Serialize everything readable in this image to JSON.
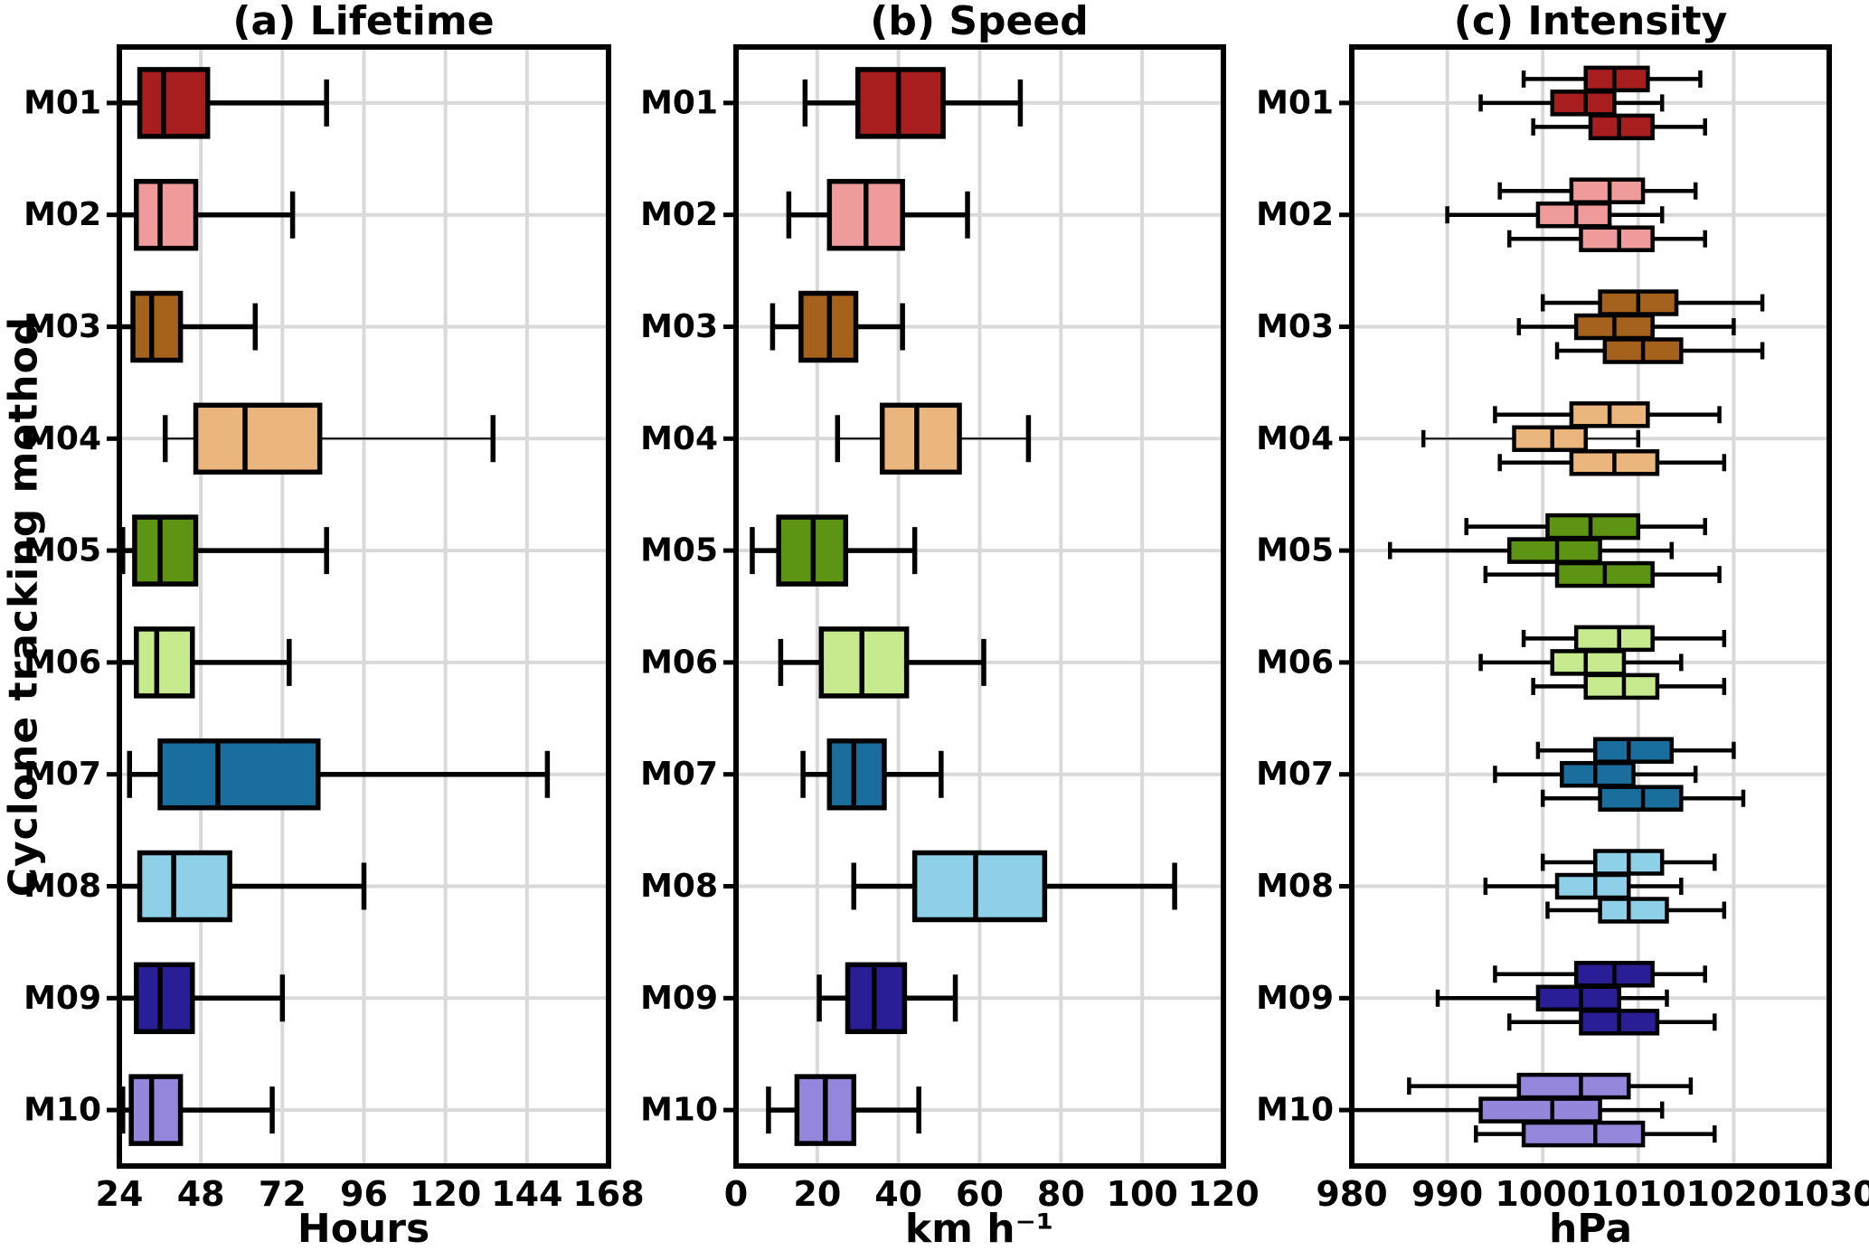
{
  "figure": {
    "y_axis_label": "Cyclone tracking method"
  },
  "methods": [
    {
      "id": "M01",
      "color": "#A81D1D"
    },
    {
      "id": "M02",
      "color": "#EF9B9B"
    },
    {
      "id": "M03",
      "color": "#A4621D"
    },
    {
      "id": "M04",
      "color": "#EBB57E"
    },
    {
      "id": "M05",
      "color": "#5E9414"
    },
    {
      "id": "M06",
      "color": "#C8EA8E"
    },
    {
      "id": "M07",
      "color": "#1A6E9E"
    },
    {
      "id": "M08",
      "color": "#8DD0E8"
    },
    {
      "id": "M09",
      "color": "#2A1E96"
    },
    {
      "id": "M10",
      "color": "#9486DB"
    }
  ],
  "stats_format": [
    "whisker_low",
    "q1",
    "median",
    "q3",
    "whisker_high"
  ],
  "style": {
    "grid_color": "#d9d9d9",
    "line_color": "#000000",
    "background": "#ffffff"
  },
  "chart_data": [
    {
      "type": "box",
      "title": "(a) Lifetime",
      "xlabel": "Hours",
      "xlim": [
        24,
        168
      ],
      "xticks": [
        24,
        48,
        72,
        96,
        120,
        144,
        168
      ],
      "grid": true,
      "orientation": "horizontal",
      "series": [
        {
          "method": "M01",
          "boxes": [
            {
              "position": "single",
              "thin_whisker": false,
              "stats": [
                24,
                30,
                37,
                50,
                85
              ]
            }
          ]
        },
        {
          "method": "M02",
          "boxes": [
            {
              "position": "single",
              "thin_whisker": false,
              "stats": [
                24,
                29,
                36,
                46.5,
                75
              ]
            }
          ]
        },
        {
          "method": "M03",
          "boxes": [
            {
              "position": "single",
              "thin_whisker": false,
              "stats": [
                24,
                28,
                33.5,
                42,
                64
              ]
            }
          ]
        },
        {
          "method": "M04",
          "boxes": [
            {
              "position": "single",
              "thin_whisker": true,
              "stats": [
                37.5,
                46.5,
                61,
                83,
                134
              ]
            }
          ]
        },
        {
          "method": "M05",
          "boxes": [
            {
              "position": "single",
              "thin_whisker": false,
              "stats": [
                25,
                28.5,
                36,
                46.5,
                85
              ]
            }
          ]
        },
        {
          "method": "M06",
          "boxes": [
            {
              "position": "single",
              "thin_whisker": false,
              "stats": [
                24,
                29,
                35,
                45.5,
                74
              ]
            }
          ]
        },
        {
          "method": "M07",
          "boxes": [
            {
              "position": "single",
              "thin_whisker": false,
              "stats": [
                27,
                36,
                53,
                82.5,
                150
              ]
            }
          ]
        },
        {
          "method": "M08",
          "boxes": [
            {
              "position": "single",
              "thin_whisker": false,
              "stats": [
                24,
                30,
                40,
                56.5,
                96
              ]
            }
          ]
        },
        {
          "method": "M09",
          "boxes": [
            {
              "position": "single",
              "thin_whisker": false,
              "stats": [
                24,
                29,
                36,
                45.5,
                72
              ]
            }
          ]
        },
        {
          "method": "M10",
          "boxes": [
            {
              "position": "single",
              "thin_whisker": false,
              "stats": [
                25,
                27.5,
                33.5,
                42,
                69
              ]
            }
          ]
        }
      ]
    },
    {
      "type": "box",
      "title": "(b) Speed",
      "xlabel": "km h⁻¹",
      "xlim": [
        0,
        120
      ],
      "xticks": [
        0,
        20,
        40,
        60,
        80,
        100,
        120
      ],
      "grid": true,
      "orientation": "horizontal",
      "series": [
        {
          "method": "M01",
          "boxes": [
            {
              "position": "single",
              "thin_whisker": false,
              "stats": [
                17,
                30,
                40,
                51,
                70
              ]
            }
          ]
        },
        {
          "method": "M02",
          "boxes": [
            {
              "position": "single",
              "thin_whisker": false,
              "stats": [
                13,
                23,
                32,
                41,
                57
              ]
            }
          ]
        },
        {
          "method": "M03",
          "boxes": [
            {
              "position": "single",
              "thin_whisker": false,
              "stats": [
                9,
                16,
                23,
                29.5,
                41
              ]
            }
          ]
        },
        {
          "method": "M04",
          "boxes": [
            {
              "position": "single",
              "thin_whisker": true,
              "stats": [
                25,
                36,
                44.5,
                55,
                72
              ]
            }
          ]
        },
        {
          "method": "M05",
          "boxes": [
            {
              "position": "single",
              "thin_whisker": false,
              "stats": [
                4,
                10.5,
                19,
                27,
                44
              ]
            }
          ]
        },
        {
          "method": "M06",
          "boxes": [
            {
              "position": "single",
              "thin_whisker": false,
              "stats": [
                11,
                21,
                31,
                42,
                61
              ]
            }
          ]
        },
        {
          "method": "M07",
          "boxes": [
            {
              "position": "single",
              "thin_whisker": false,
              "stats": [
                16.5,
                23,
                29,
                36.5,
                50.5
              ]
            }
          ]
        },
        {
          "method": "M08",
          "boxes": [
            {
              "position": "single",
              "thin_whisker": false,
              "stats": [
                29,
                44,
                59,
                76,
                108
              ]
            }
          ]
        },
        {
          "method": "M09",
          "boxes": [
            {
              "position": "single",
              "thin_whisker": false,
              "stats": [
                20.5,
                27.5,
                34,
                41.5,
                54
              ]
            }
          ]
        },
        {
          "method": "M10",
          "boxes": [
            {
              "position": "single",
              "thin_whisker": false,
              "stats": [
                8,
                15,
                22,
                29,
                45
              ]
            }
          ]
        }
      ]
    },
    {
      "type": "box",
      "title": "(c) Intensity",
      "xlabel": "hPa",
      "xlim": [
        980,
        1030
      ],
      "xticks": [
        980,
        990,
        1000,
        1010,
        1020,
        1030
      ],
      "grid": true,
      "orientation": "horizontal",
      "boxes_per_method": 3,
      "series": [
        {
          "method": "M01",
          "boxes": [
            {
              "position": "upper",
              "thin_whisker": false,
              "stats": [
                998,
                1004.5,
                1007.5,
                1011,
                1016.5
              ]
            },
            {
              "position": "middle",
              "thin_whisker": false,
              "stats": [
                993.5,
                1001,
                1004.5,
                1007.5,
                1012.5
              ]
            },
            {
              "position": "lower",
              "thin_whisker": false,
              "stats": [
                999,
                1005,
                1008,
                1011.5,
                1017
              ]
            }
          ]
        },
        {
          "method": "M02",
          "boxes": [
            {
              "position": "upper",
              "thin_whisker": false,
              "stats": [
                995.5,
                1003,
                1007,
                1010.5,
                1016
              ]
            },
            {
              "position": "middle",
              "thin_whisker": false,
              "stats": [
                990,
                999.5,
                1003.5,
                1007,
                1012.5
              ]
            },
            {
              "position": "lower",
              "thin_whisker": false,
              "stats": [
                996.5,
                1004,
                1008,
                1011.5,
                1017
              ]
            }
          ]
        },
        {
          "method": "M03",
          "boxes": [
            {
              "position": "upper",
              "thin_whisker": false,
              "stats": [
                1000,
                1006,
                1010,
                1014,
                1023
              ]
            },
            {
              "position": "middle",
              "thin_whisker": false,
              "stats": [
                997.5,
                1003.5,
                1007.5,
                1011.5,
                1020
              ]
            },
            {
              "position": "lower",
              "thin_whisker": false,
              "stats": [
                1001.5,
                1006.5,
                1010.5,
                1014.5,
                1023
              ]
            }
          ]
        },
        {
          "method": "M04",
          "boxes": [
            {
              "position": "upper",
              "thin_whisker": false,
              "stats": [
                995,
                1003,
                1007,
                1011,
                1018.5
              ]
            },
            {
              "position": "middle",
              "thin_whisker": true,
              "stats": [
                987.5,
                997,
                1001,
                1004.5,
                1010
              ]
            },
            {
              "position": "lower",
              "thin_whisker": false,
              "stats": [
                995.5,
                1003,
                1007.5,
                1012,
                1019
              ]
            }
          ]
        },
        {
          "method": "M05",
          "boxes": [
            {
              "position": "upper",
              "thin_whisker": false,
              "stats": [
                992,
                1000.5,
                1005,
                1010,
                1017
              ]
            },
            {
              "position": "middle",
              "thin_whisker": false,
              "stats": [
                984,
                996.5,
                1001.5,
                1006,
                1013.5
              ]
            },
            {
              "position": "lower",
              "thin_whisker": false,
              "stats": [
                994,
                1001.5,
                1006.5,
                1011.5,
                1018.5
              ]
            }
          ]
        },
        {
          "method": "M06",
          "boxes": [
            {
              "position": "upper",
              "thin_whisker": false,
              "stats": [
                998,
                1003.5,
                1008,
                1011.5,
                1019
              ]
            },
            {
              "position": "middle",
              "thin_whisker": false,
              "stats": [
                993.5,
                1001,
                1004.5,
                1008.5,
                1014.5
              ]
            },
            {
              "position": "lower",
              "thin_whisker": false,
              "stats": [
                999,
                1004.5,
                1008.5,
                1012,
                1019
              ]
            }
          ]
        },
        {
          "method": "M07",
          "boxes": [
            {
              "position": "upper",
              "thin_whisker": false,
              "stats": [
                999.5,
                1005.5,
                1009,
                1013.5,
                1020
              ]
            },
            {
              "position": "middle",
              "thin_whisker": false,
              "stats": [
                995,
                1002,
                1005.5,
                1009.5,
                1016
              ]
            },
            {
              "position": "lower",
              "thin_whisker": false,
              "stats": [
                1000,
                1006,
                1010.5,
                1014.5,
                1021
              ]
            }
          ]
        },
        {
          "method": "M08",
          "boxes": [
            {
              "position": "upper",
              "thin_whisker": false,
              "stats": [
                1000,
                1005.5,
                1009,
                1012.5,
                1018
              ]
            },
            {
              "position": "middle",
              "thin_whisker": false,
              "stats": [
                994,
                1001.5,
                1005.5,
                1009,
                1014.5
              ]
            },
            {
              "position": "lower",
              "thin_whisker": false,
              "stats": [
                1000.5,
                1006,
                1009,
                1013,
                1019
              ]
            }
          ]
        },
        {
          "method": "M09",
          "boxes": [
            {
              "position": "upper",
              "thin_whisker": false,
              "stats": [
                995,
                1003.5,
                1007.5,
                1011.5,
                1017
              ]
            },
            {
              "position": "middle",
              "thin_whisker": false,
              "stats": [
                989,
                999.5,
                1004,
                1008,
                1013
              ]
            },
            {
              "position": "lower",
              "thin_whisker": false,
              "stats": [
                996.5,
                1004,
                1008,
                1012,
                1018
              ]
            }
          ]
        },
        {
          "method": "M10",
          "boxes": [
            {
              "position": "upper",
              "thin_whisker": false,
              "stats": [
                986,
                997.5,
                1004,
                1009,
                1015.5
              ]
            },
            {
              "position": "middle",
              "thin_whisker": false,
              "stats": [
                980,
                993.5,
                1001,
                1006,
                1012.5
              ]
            },
            {
              "position": "lower",
              "thin_whisker": false,
              "stats": [
                993,
                998,
                1005.5,
                1010.5,
                1018
              ]
            }
          ]
        }
      ]
    }
  ]
}
